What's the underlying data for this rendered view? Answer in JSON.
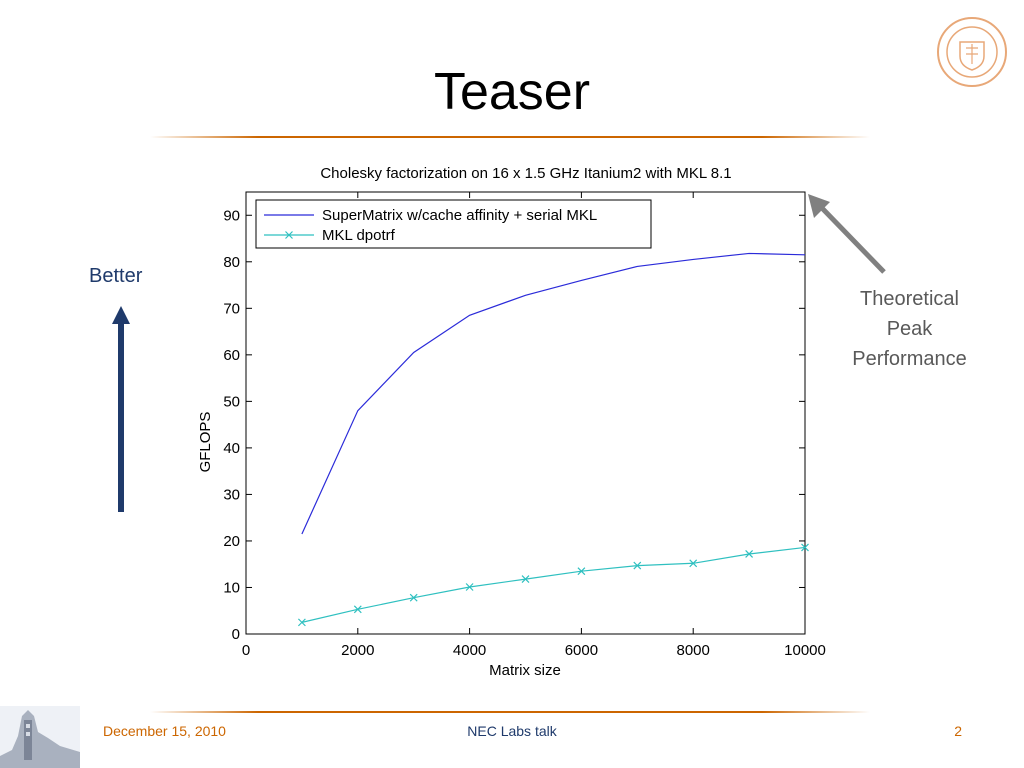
{
  "slide": {
    "title": "Teaser",
    "better_label": "Better",
    "peak_label_lines": [
      "Theoretical",
      "Peak",
      "Performance"
    ]
  },
  "footer": {
    "date": "December 15, 2010",
    "center": "NEC Labs talk",
    "page": "2"
  },
  "colors": {
    "accent": "#cc6600",
    "better_arrow": "#1f3a6b",
    "peak_arrow": "#808080",
    "series_supermatrix": "#2b2bd9",
    "series_mkl": "#2fc0c0"
  },
  "chart_data": {
    "type": "line",
    "title": "Cholesky factorization on 16 x 1.5 GHz Itanium2 with MKL 8.1",
    "xlabel": "Matrix size",
    "ylabel": "GFLOPS",
    "xlim": [
      0,
      10000
    ],
    "ylim": [
      0,
      95
    ],
    "xticks": [
      0,
      2000,
      4000,
      6000,
      8000,
      10000
    ],
    "yticks": [
      0,
      10,
      20,
      30,
      40,
      50,
      60,
      70,
      80,
      90
    ],
    "legend_position": "top-left",
    "grid": false,
    "series": [
      {
        "name": "SuperMatrix w/cache affinity + serial MKL",
        "marker": "none",
        "x": [
          1000,
          2000,
          3000,
          4000,
          5000,
          6000,
          7000,
          8000,
          9000,
          10000
        ],
        "y": [
          21.5,
          48,
          60.5,
          68.5,
          72.8,
          76,
          79,
          80.5,
          81.8,
          81.5
        ]
      },
      {
        "name": "MKL dpotrf",
        "marker": "x",
        "x": [
          1000,
          2000,
          3000,
          4000,
          5000,
          6000,
          7000,
          8000,
          9000,
          10000
        ],
        "y": [
          2.5,
          5.3,
          7.8,
          10.1,
          11.8,
          13.5,
          14.7,
          15.2,
          17.2,
          18.6
        ]
      }
    ]
  }
}
